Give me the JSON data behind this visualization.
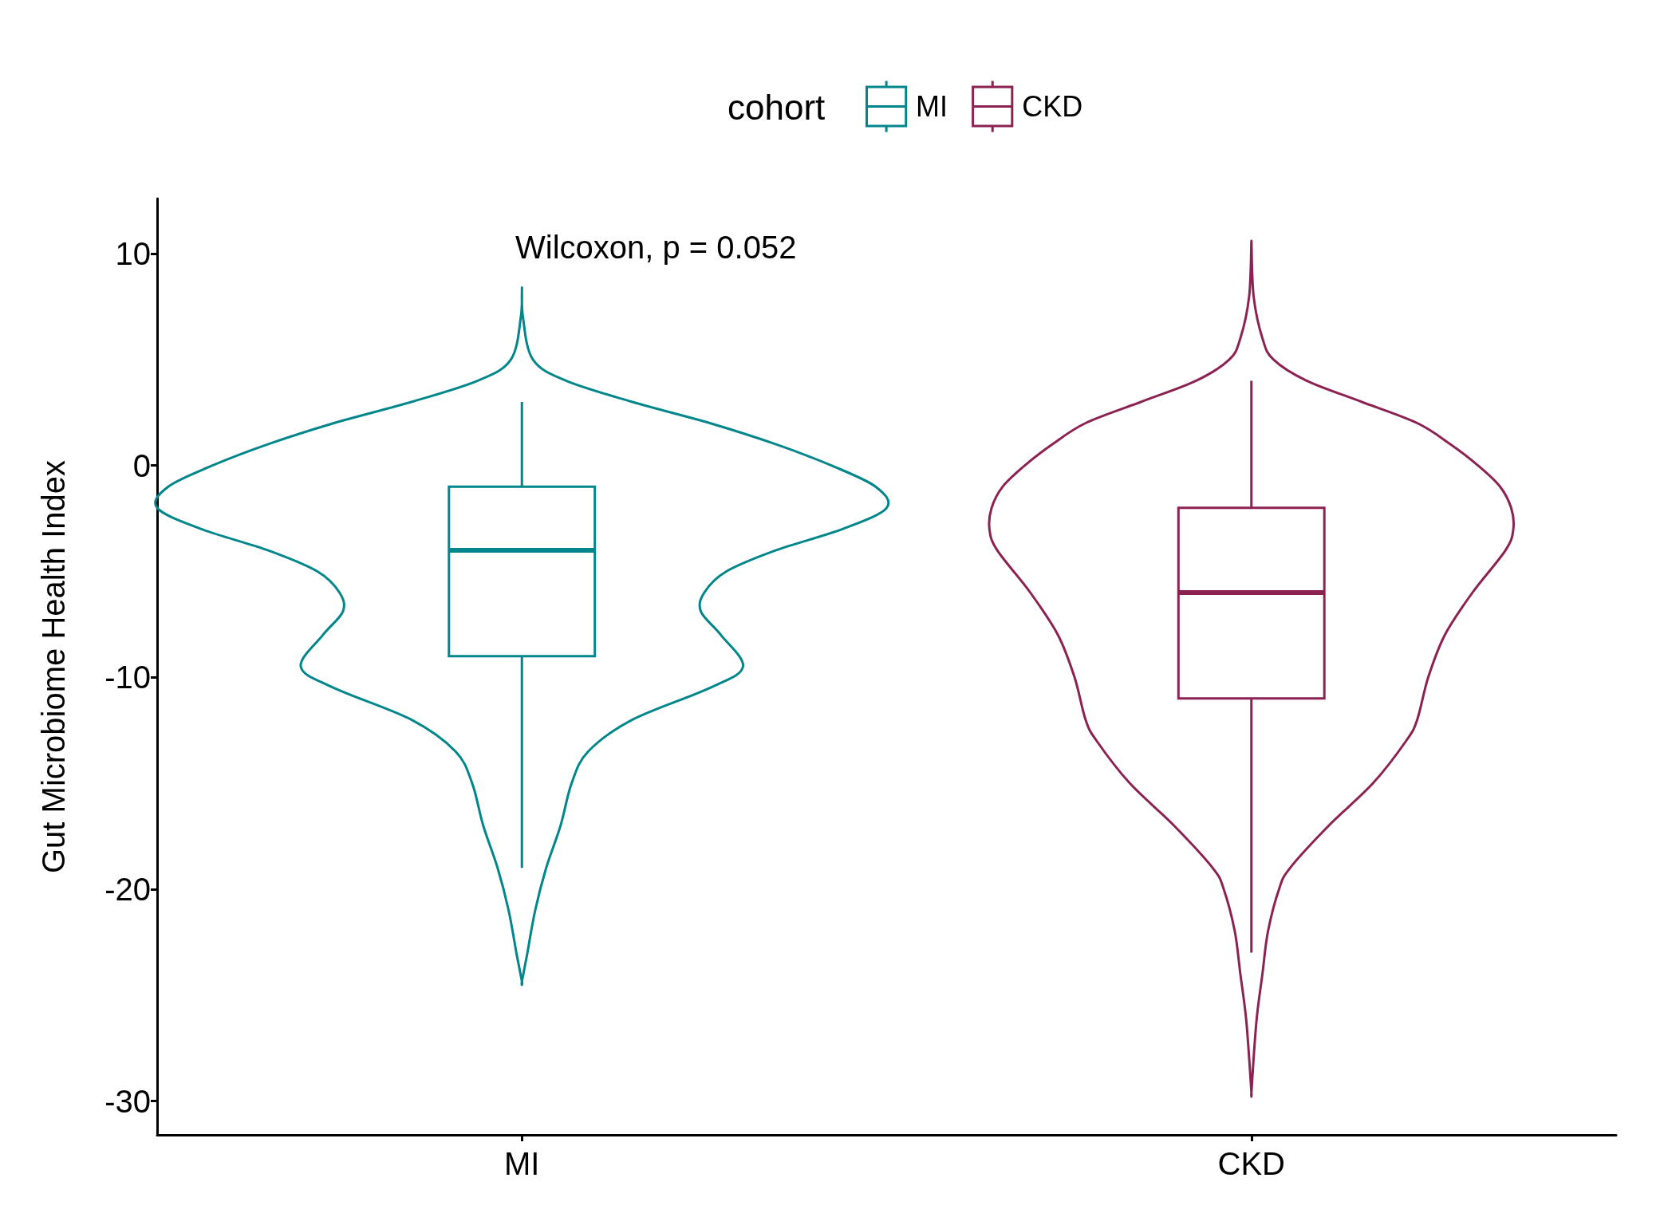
{
  "chart_data": {
    "type": "box",
    "ylabel": "Gut Microbiome Health Index",
    "legend_title": "cohort",
    "legend": "top",
    "categories": [
      "MI",
      "CKD"
    ],
    "ylim": [
      -31.6,
      12.6
    ],
    "yticks": [
      -30,
      -20,
      -10,
      0,
      10
    ],
    "grid": false,
    "annotations": [
      "Wilcoxon, p = 0.052"
    ],
    "series": [
      {
        "name": "MI",
        "color": "#00868b",
        "boxes": [
          {
            "low": -19,
            "q1": -9,
            "median": -4,
            "q3": -1,
            "high": 3
          },
          null
        ]
      },
      {
        "name": "CKD",
        "color": "#8b2252",
        "boxes": [
          null,
          {
            "low": -23,
            "q1": -11,
            "median": -6,
            "q3": -2,
            "high": 4
          }
        ]
      }
    ]
  }
}
